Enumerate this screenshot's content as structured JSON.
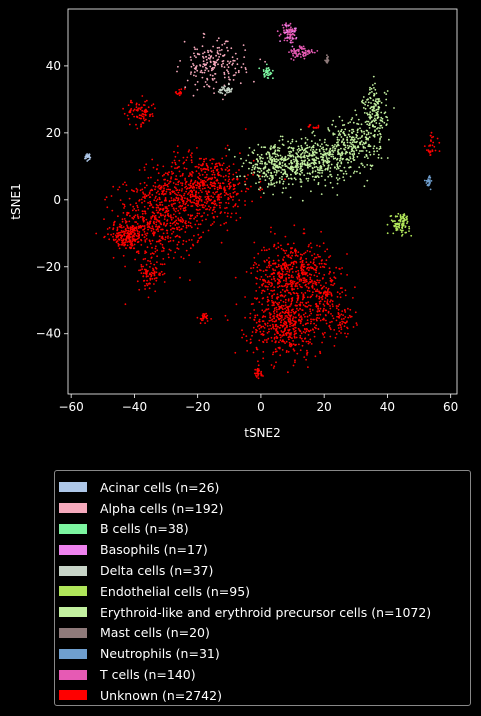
{
  "chart_data": {
    "type": "scatter",
    "title": "",
    "xlabel": "tSNE2",
    "ylabel": "tSNE1",
    "xlim": [
      -61,
      62
    ],
    "ylim": [
      -58,
      57
    ],
    "xticks": [
      -60,
      -40,
      -20,
      0,
      20,
      40,
      60
    ],
    "yticks": [
      -40,
      -20,
      0,
      20,
      40
    ],
    "xtick_labels": [
      "−60",
      "−40",
      "−20",
      "0",
      "20",
      "40",
      "60"
    ],
    "ytick_labels": [
      "−40",
      "−20",
      "0",
      "20",
      "40"
    ],
    "grid": false,
    "legend_position": "below",
    "series": [
      {
        "name": "Acinar cells (n=26)",
        "color": "#aec7e8",
        "n": 26,
        "clusters": [
          {
            "cx": -54.5,
            "cy": 13,
            "sx": 0.5,
            "sy": 0.5,
            "w": 1
          }
        ]
      },
      {
        "name": "Alpha cells (n=192)",
        "color": "#f5a9bc",
        "n": 192,
        "clusters": [
          {
            "cx": -15,
            "cy": 40,
            "sx": 5,
            "sy": 3.5,
            "w": 1
          }
        ]
      },
      {
        "name": "B cells (n=38)",
        "color": "#7cf5a0",
        "n": 38,
        "clusters": [
          {
            "cx": 2,
            "cy": 38,
            "sx": 1.0,
            "sy": 0.8,
            "w": 1
          }
        ]
      },
      {
        "name": "Basophils (n=17)",
        "color": "#ee82ee",
        "n": 17,
        "clusters": [
          {
            "cx": 9,
            "cy": 50,
            "sx": 1.5,
            "sy": 1.5,
            "w": 1
          }
        ]
      },
      {
        "name": "Delta cells (n=37)",
        "color": "#c7d4c7",
        "n": 37,
        "clusters": [
          {
            "cx": -11,
            "cy": 33,
            "sx": 1.2,
            "sy": 0.6,
            "w": 1
          }
        ]
      },
      {
        "name": "Endothelial cells (n=95)",
        "color": "#b0e65a",
        "n": 95,
        "clusters": [
          {
            "cx": 44,
            "cy": -7,
            "sx": 1.5,
            "sy": 1.5,
            "w": 1
          }
        ]
      },
      {
        "name": "Erythroid-like and erythroid precursor cells (n=1072)",
        "color": "#c3f0a0",
        "n": 1072,
        "clusters": [
          {
            "cx": 5,
            "cy": 10,
            "sx": 5,
            "sy": 3,
            "w": 0.3
          },
          {
            "cx": 18,
            "cy": 12,
            "sx": 6,
            "sy": 3,
            "w": 0.35
          },
          {
            "cx": 30,
            "cy": 17,
            "sx": 4,
            "sy": 4,
            "w": 0.2
          },
          {
            "cx": 36,
            "cy": 26,
            "sx": 2,
            "sy": 4,
            "w": 0.15
          }
        ]
      },
      {
        "name": "Mast cells (n=20)",
        "color": "#8f7a7a",
        "n": 20,
        "clusters": [
          {
            "cx": 21,
            "cy": 42,
            "sx": 0.3,
            "sy": 0.8,
            "w": 1
          }
        ]
      },
      {
        "name": "Neutrophils (n=31)",
        "color": "#6f9fcf",
        "n": 31,
        "clusters": [
          {
            "cx": 53,
            "cy": 5.5,
            "sx": 0.4,
            "sy": 0.8,
            "w": 1
          }
        ]
      },
      {
        "name": "T cells (n=140)",
        "color": "#e65ab4",
        "n": 140,
        "clusters": [
          {
            "cx": 9,
            "cy": 50,
            "sx": 1.2,
            "sy": 1.5,
            "w": 0.5
          },
          {
            "cx": 13,
            "cy": 44,
            "sx": 2,
            "sy": 1,
            "w": 0.5
          }
        ]
      },
      {
        "name": "Unknown (n=2742)",
        "color": "#ff0000",
        "n": 2742,
        "clusters": [
          {
            "cx": -42,
            "cy": -11,
            "sx": 2.5,
            "sy": 2,
            "w": 0.06
          },
          {
            "cx": -32,
            "cy": -6,
            "sx": 7,
            "sy": 6,
            "w": 0.2
          },
          {
            "cx": -18,
            "cy": 4,
            "sx": 8,
            "sy": 5,
            "w": 0.2
          },
          {
            "cx": -35,
            "cy": -22,
            "sx": 2,
            "sy": 2,
            "w": 0.03
          },
          {
            "cx": -38,
            "cy": 26,
            "sx": 2.5,
            "sy": 2,
            "w": 0.03
          },
          {
            "cx": 10,
            "cy": -22,
            "sx": 6,
            "sy": 5,
            "w": 0.18
          },
          {
            "cx": 8,
            "cy": -37,
            "sx": 6,
            "sy": 5,
            "w": 0.18
          },
          {
            "cx": 20,
            "cy": -30,
            "sx": 3,
            "sy": 4,
            "w": 0.04
          },
          {
            "cx": 26,
            "cy": -36,
            "sx": 2,
            "sy": 2,
            "w": 0.02
          },
          {
            "cx": -18,
            "cy": -35,
            "sx": 1,
            "sy": 1,
            "w": 0.01
          },
          {
            "cx": -1,
            "cy": -52,
            "sx": 1,
            "sy": 1,
            "w": 0.01
          },
          {
            "cx": 54,
            "cy": 16,
            "sx": 1,
            "sy": 2,
            "w": 0.01
          },
          {
            "cx": 17,
            "cy": 22,
            "sx": 1.5,
            "sy": 0.5,
            "w": 0.005
          },
          {
            "cx": -26,
            "cy": 32,
            "sx": 1,
            "sy": 0.5,
            "w": 0.005
          }
        ]
      }
    ]
  }
}
